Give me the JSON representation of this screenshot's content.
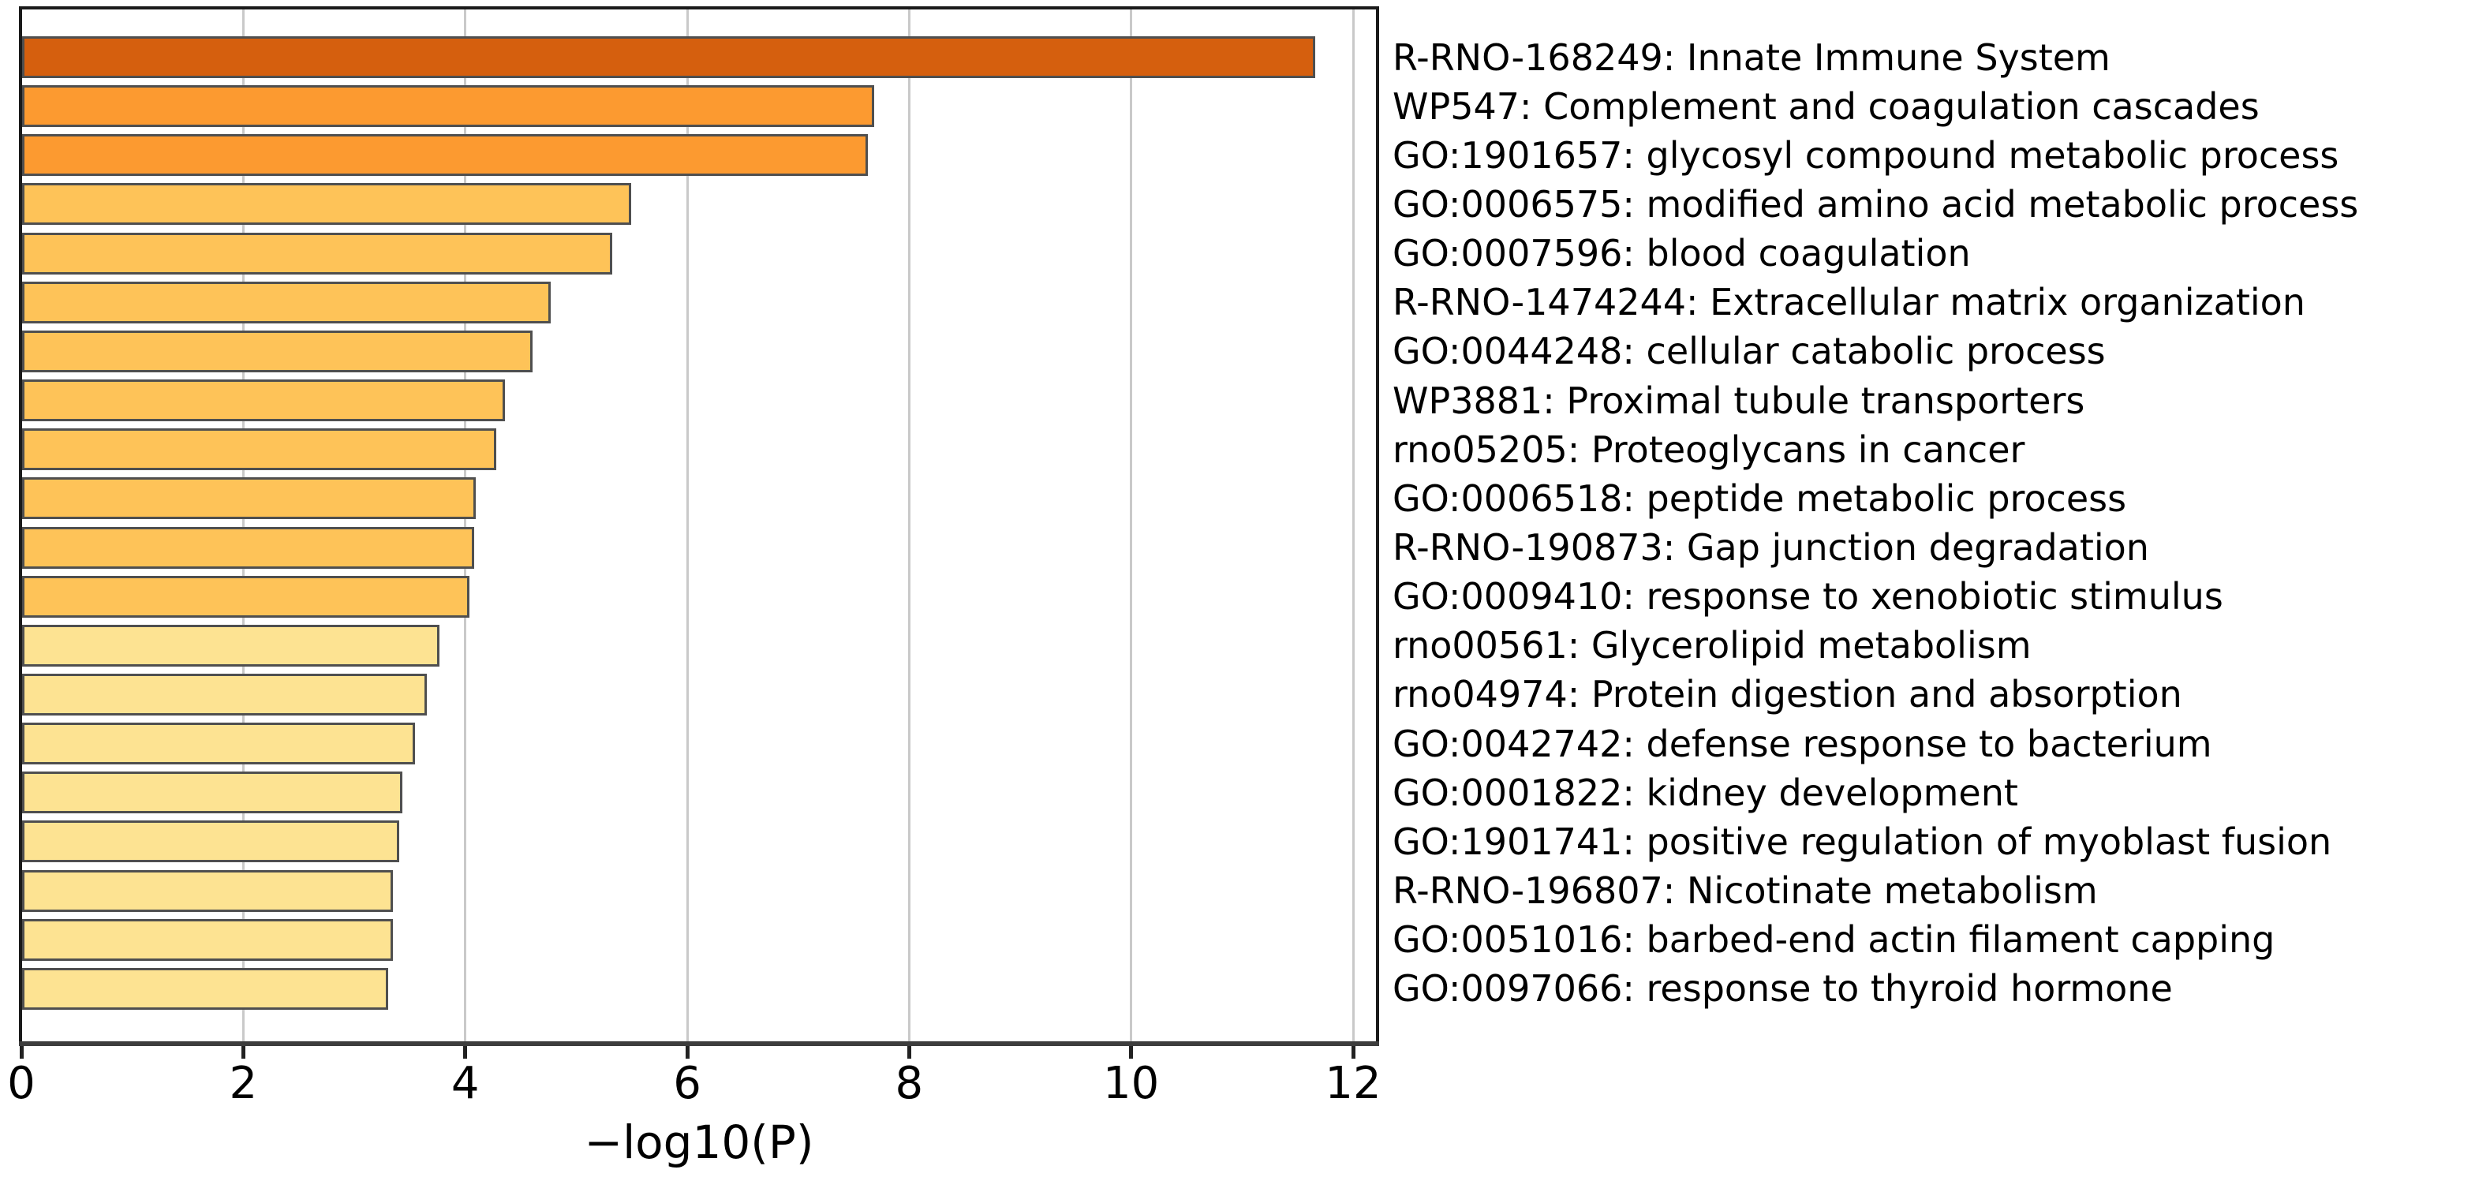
{
  "chart_data": {
    "type": "bar",
    "orientation": "horizontal",
    "title": "",
    "xlabel": "−log10(P)",
    "ylabel": "",
    "xlim": [
      0,
      12.2
    ],
    "xticks": [
      0,
      2,
      4,
      6,
      8,
      10,
      12
    ],
    "xtick_labels": [
      "0",
      "2",
      "4",
      "6",
      "8",
      "10",
      "12"
    ],
    "grid": true,
    "grid_color": "#c9c9c9",
    "bar_edge_color": "#4f4f4f",
    "background_color": "#ffffff",
    "categories": [
      "R-RNO-168249: Innate Immune System",
      "WP547: Complement and coagulation cascades",
      "GO:1901657: glycosyl compound metabolic process",
      "GO:0006575: modified amino acid metabolic process",
      "GO:0007596: blood coagulation",
      "R-RNO-1474244: Extracellular matrix organization",
      "GO:0044248: cellular catabolic process",
      "WP3881: Proximal tubule transporters",
      "rno05205: Proteoglycans in cancer",
      "GO:0006518: peptide metabolic process",
      "R-RNO-190873: Gap junction degradation",
      "GO:0009410: response to xenobiotic stimulus",
      "rno00561: Glycerolipid metabolism",
      "rno04974: Protein digestion and absorption",
      "GO:0042742: defense response to bacterium",
      "GO:0001822: kidney development",
      "GO:1901741: positive regulation of myoblast fusion",
      "R-RNO-196807: Nicotinate metabolism",
      "GO:0051016: barbed-end actin filament capping",
      "GO:0097066: response to thyroid hormone"
    ],
    "values": [
      11.65,
      7.68,
      7.62,
      5.49,
      5.32,
      4.76,
      4.6,
      4.35,
      4.27,
      4.09,
      4.07,
      4.03,
      3.76,
      3.65,
      3.54,
      3.43,
      3.4,
      3.34,
      3.34,
      3.3
    ],
    "bar_colors": [
      "#d55f0e",
      "#fc9a30",
      "#fc9a30",
      "#fec358",
      "#fec358",
      "#fec358",
      "#fec358",
      "#fec358",
      "#fec358",
      "#fec358",
      "#fec358",
      "#fec358",
      "#fde392",
      "#fde392",
      "#fde392",
      "#fde392",
      "#fde392",
      "#fde392",
      "#fde392",
      "#fde392"
    ]
  }
}
